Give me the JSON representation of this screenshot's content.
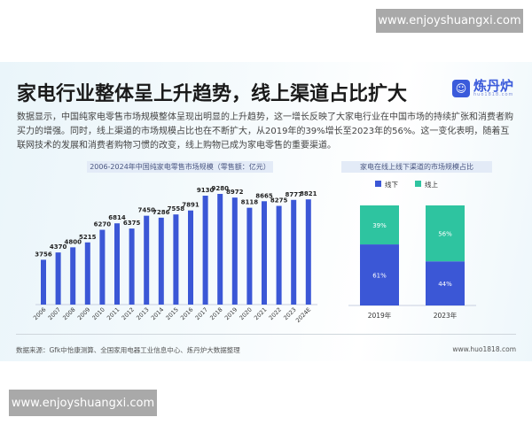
{
  "watermark_top": "www.enjoyshuangxi.com",
  "watermark_bottom": "www.enjoyshuangxi.com",
  "title": "家电行业整体呈上升趋势，线上渠道占比扩大",
  "logo": {
    "name": "炼丹炉",
    "url": "huo1818.com"
  },
  "paragraph": "数据显示，中国纯家电零售市场规模整体呈现出明显的上升趋势，这一增长反映了大家电行业在中国市场的持续扩张和消费者购买力的增强。同时，线上渠道的市场规模占比也在不断扩大，从2019年的39%增长至2023年的56%。这一变化表明，随着互联网技术的发展和消费者购物习惯的改变，线上购物已成为家电零售的重要渠道。",
  "footer": {
    "source": "数据来源：Gfk中怡康测算、全国家用电器工业信息中心、炼丹炉大数据整理",
    "site": "www.huo1818.com"
  },
  "colors": {
    "bar": "#3b57d6",
    "offline": "#3b57d6",
    "online": "#2ec4a0"
  },
  "chart_data": [
    {
      "type": "bar",
      "title": "2006-2024年中国纯家电零售市场规模（零售额：亿元）",
      "categories": [
        "2006",
        "2007",
        "2008",
        "2009",
        "2010",
        "2011",
        "2012",
        "2013",
        "2014",
        "2015",
        "2016",
        "2017",
        "2018",
        "2019",
        "2020",
        "2021",
        "2022",
        "2023",
        "2024E"
      ],
      "values": [
        3756,
        4370,
        4800,
        5215,
        6270,
        6814,
        6375,
        7450,
        7286,
        7558,
        7891,
        9130,
        9280,
        8972,
        8118,
        8665,
        8275,
        8777,
        8821
      ],
      "grid": false
    },
    {
      "type": "bar",
      "stacked": true,
      "title": "家电在线上线下渠道的市场规模占比",
      "categories": [
        "2019年",
        "2023年"
      ],
      "series": [
        {
          "name": "线下",
          "values": [
            61,
            44
          ],
          "labels": [
            "61%",
            "44%"
          ]
        },
        {
          "name": "线上",
          "values": [
            39,
            56
          ],
          "labels": [
            "39%",
            "56%"
          ]
        }
      ],
      "legend": "top"
    }
  ]
}
